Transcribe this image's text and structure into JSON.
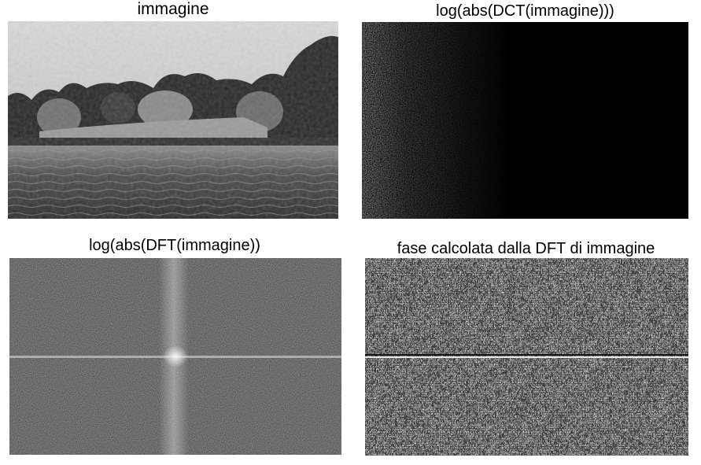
{
  "panels": [
    {
      "title": "immagine"
    },
    {
      "title": "log(abs(DCT(immagine)))"
    },
    {
      "title": "log(abs(DFT(immagine))"
    },
    {
      "title": "fase calcolata dalla DFT di immagine"
    }
  ]
}
